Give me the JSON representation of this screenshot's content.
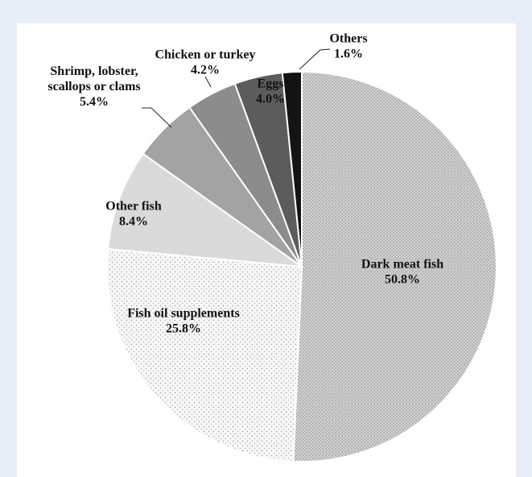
{
  "chart_data": {
    "type": "pie",
    "title": "",
    "start_angle_deg": 0,
    "direction": "clockwise",
    "slices": [
      {
        "label": "Dark meat fish",
        "pct_label": "50.8%",
        "value": 50.8,
        "color": "#c4c4c4",
        "pattern": "fine-dots"
      },
      {
        "label": "Fish oil supplements",
        "pct_label": "25.8%",
        "value": 25.8,
        "color": "#f2f2f2",
        "pattern": "sparse-dots"
      },
      {
        "label": "Other fish",
        "pct_label": "8.4%",
        "value": 8.4,
        "color": "#dadada",
        "pattern": "none"
      },
      {
        "label": "Shrimp, lobster, scallops or clams",
        "label_lines": [
          "Shrimp, lobster,",
          "scallops or clams"
        ],
        "pct_label": "5.4%",
        "value": 5.4,
        "color": "#a3a3a3",
        "pattern": "none"
      },
      {
        "label": "Chicken or turkey",
        "pct_label": "4.2%",
        "value": 4.2,
        "color": "#8c8c8c",
        "pattern": "none"
      },
      {
        "label": "Eggs",
        "pct_label": "4.0%",
        "value": 4.0,
        "color": "#5c5c5c",
        "pattern": "none"
      },
      {
        "label": "Others",
        "pct_label": "1.6%",
        "value": 1.6,
        "color": "#141414",
        "pattern": "none"
      }
    ]
  }
}
